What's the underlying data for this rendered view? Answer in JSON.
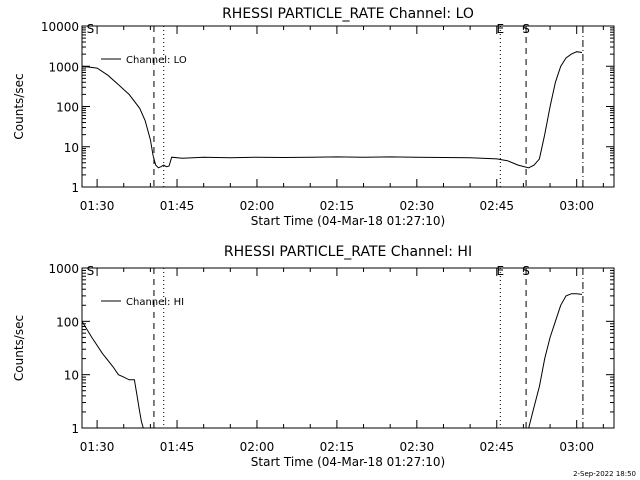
{
  "footer_stamp": "2-Sep-2022 18:50",
  "chart_data": [
    {
      "type": "line",
      "title": "RHESSI PARTICLE_RATE Channel: LO",
      "xlabel": "Start Time (04-Mar-18 01:27:10)",
      "ylabel": "Counts/sec",
      "yscale": "log",
      "ylim": [
        1,
        10000
      ],
      "xlim": [
        "01:27:10",
        "03:07:00"
      ],
      "xticks": [
        "01:30",
        "01:45",
        "02:00",
        "02:15",
        "02:30",
        "02:45",
        "03:00"
      ],
      "yticks": [
        "1",
        "10",
        "100",
        "1000",
        "10000"
      ],
      "legend": "upper-left",
      "series": [
        {
          "name": "Channel: LO",
          "x": [
            "01:27:10",
            "01:30:00",
            "01:32:00",
            "01:34:00",
            "01:36:00",
            "01:38:00",
            "01:39:00",
            "01:40:00",
            "01:40:30",
            "01:41:00",
            "01:41:30",
            "01:42:00",
            "01:42:30",
            "01:43:00",
            "01:43:30",
            "01:44:00",
            "01:46:00",
            "01:50:00",
            "01:55:00",
            "02:00:00",
            "02:05:00",
            "02:10:00",
            "02:15:00",
            "02:20:00",
            "02:25:00",
            "02:30:00",
            "02:35:00",
            "02:40:00",
            "02:45:00",
            "02:47:00",
            "02:49:00",
            "02:51:00",
            "02:52:00",
            "02:53:00",
            "02:54:00",
            "02:55:00",
            "02:56:00",
            "02:57:00",
            "02:58:00",
            "02:59:00",
            "03:00:00",
            "03:01:00"
          ],
          "y": [
            1000,
            900,
            600,
            350,
            200,
            90,
            45,
            15,
            6,
            3.5,
            3,
            3.2,
            3.5,
            3.2,
            3.3,
            5.5,
            5.2,
            5.5,
            5.3,
            5.5,
            5.4,
            5.5,
            5.6,
            5.5,
            5.6,
            5.5,
            5.4,
            5.3,
            5.0,
            4.5,
            3.5,
            3.0,
            3.5,
            5,
            20,
            100,
            400,
            1000,
            1600,
            2000,
            2300,
            2200
          ]
        }
      ],
      "markers": [
        "S",
        "E",
        "S"
      ]
    },
    {
      "type": "line",
      "title": "RHESSI PARTICLE_RATE Channel: HI",
      "xlabel": "Start Time (04-Mar-18 01:27:10)",
      "ylabel": "Counts/sec",
      "yscale": "log",
      "ylim": [
        1,
        1000
      ],
      "xlim": [
        "01:27:10",
        "03:07:00"
      ],
      "xticks": [
        "01:30",
        "01:45",
        "02:00",
        "02:15",
        "02:30",
        "02:45",
        "03:00"
      ],
      "yticks": [
        "1",
        "10",
        "100",
        "1000"
      ],
      "legend": "upper-left",
      "series": [
        {
          "name": "Channel: HI",
          "x": [
            "01:27:10",
            "01:29:00",
            "01:31:00",
            "01:33:00",
            "01:34:00",
            "01:35:00",
            "01:36:00",
            "01:37:00",
            "01:37:30",
            "01:38:00",
            "01:38:20",
            "01:38:40",
            "02:51:00",
            "02:52:00",
            "02:53:00",
            "02:54:00",
            "02:55:00",
            "02:56:00",
            "02:57:00",
            "02:58:00",
            "02:59:00",
            "03:00:00",
            "03:01:00"
          ],
          "y": [
            100,
            50,
            25,
            14,
            10,
            9,
            8,
            8,
            4,
            2,
            1.3,
            1,
            1,
            2.5,
            6,
            20,
            50,
            100,
            200,
            300,
            330,
            330,
            320
          ]
        }
      ],
      "markers": [
        "S",
        "E",
        "S"
      ]
    }
  ]
}
